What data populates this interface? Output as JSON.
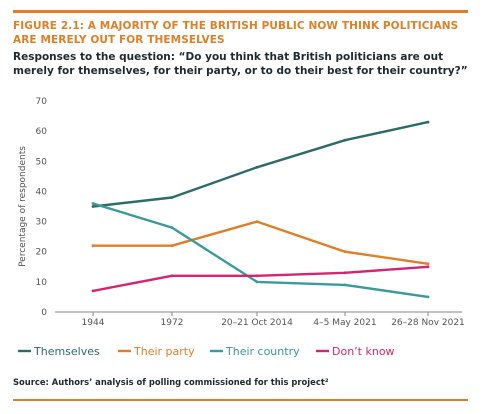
{
  "figure": {
    "title": "FIGURE 2.1: A MAJORITY OF THE BRITISH PUBLIC NOW THINK POLITICIANS ARE MERELY OUT FOR THEMSELVES",
    "subtitle": "Responses to the question: “Do you think that British politicians are out merely for themselves, for their party, or to do their best for their country?”",
    "source": "Source: Authors’ analysis of polling commissioned for this project²",
    "accent_color": "#e07f26"
  },
  "chart_data": {
    "type": "line",
    "ylabel": "Percentage of respondents",
    "xlabel": "",
    "categories": [
      "1944",
      "1972",
      "20–21 Oct 2014",
      "4–5 May 2021",
      "26–28 Nov 2021"
    ],
    "ylim": [
      0,
      70
    ],
    "yticks": [
      0,
      10,
      20,
      30,
      40,
      50,
      60,
      70
    ],
    "grid": false,
    "legend_position": "bottom",
    "series": [
      {
        "name": "Themselves",
        "color": "#2e6b6b",
        "values": [
          35,
          38,
          48,
          57,
          63
        ]
      },
      {
        "name": "Their party",
        "color": "#e07f26",
        "values": [
          22,
          22,
          30,
          20,
          16
        ]
      },
      {
        "name": "Their country",
        "color": "#3a9a9e",
        "values": [
          36,
          28,
          10,
          9,
          5
        ]
      },
      {
        "name": "Don’t know",
        "color": "#d6246e",
        "values": [
          7,
          12,
          12,
          13,
          15
        ]
      }
    ]
  }
}
